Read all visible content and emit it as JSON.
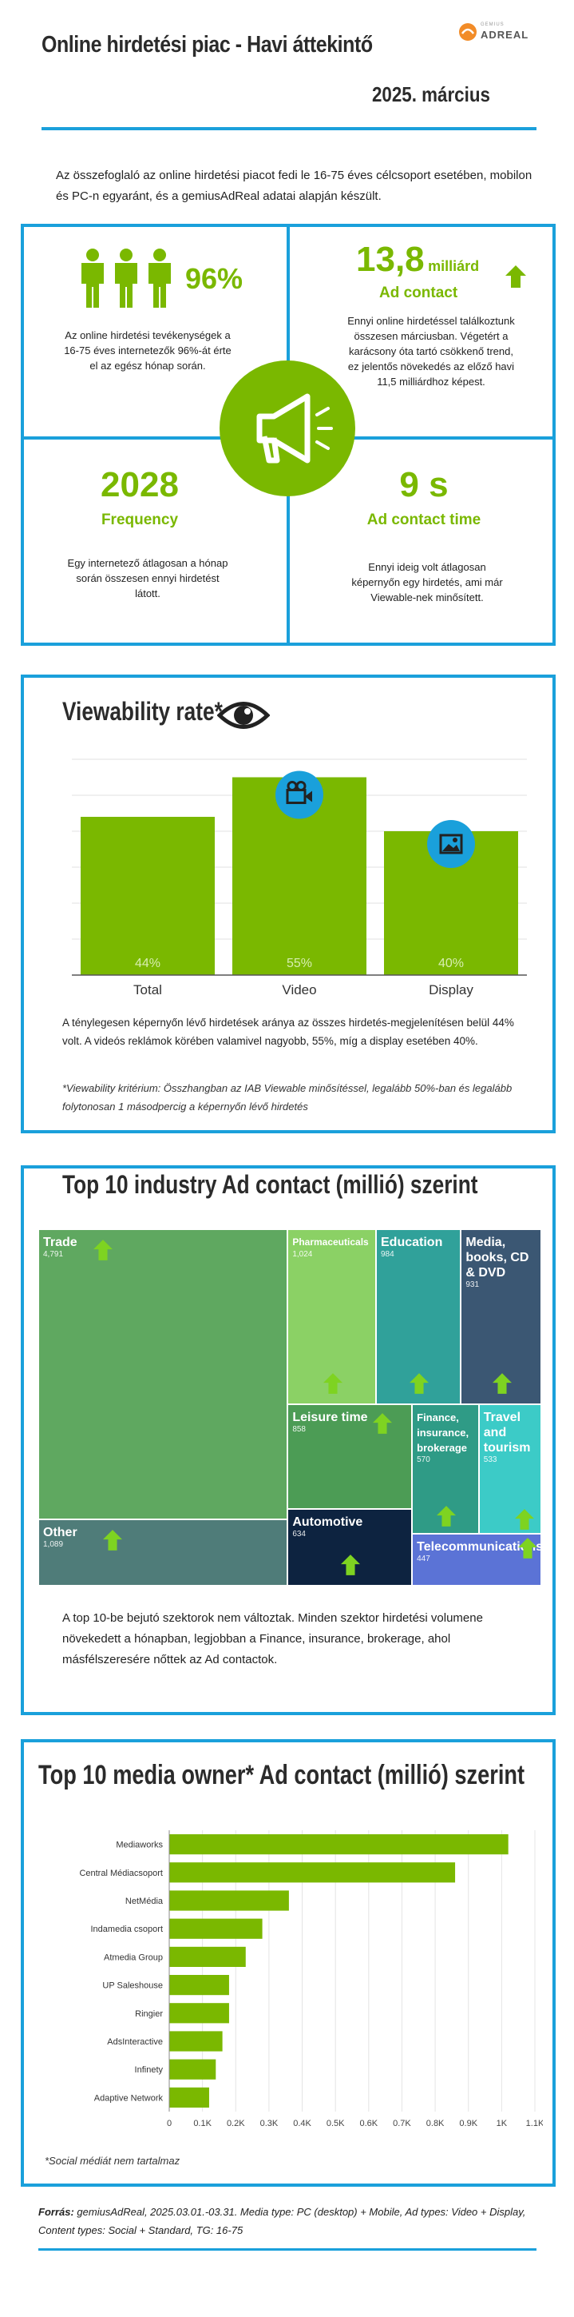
{
  "header": {
    "title": "Online hirdetési piac  - Havi áttekintő",
    "brand_small": "GEMIUS",
    "brand": "ADREAL",
    "date": "2025. március"
  },
  "intro": "Az összefoglaló az online hirdetési piacot fedi le 16-75 éves célcsoport esetében, mobilon és PC-n egyaránt, és a gemiusAdReal adatai alapján készült.",
  "kpis": {
    "reach": {
      "value": "96%",
      "desc": "Az online hirdetési tevékenységek a 16-75 éves internetezők 96%-át érte el az egész hónap során."
    },
    "ad_contact": {
      "value": "13,8",
      "unit": "milliárd",
      "label": "Ad contact",
      "desc": "Ennyi online hirdetéssel találkoztunk összesen márciusban. Végetért a karácsony óta tartó csökkenő trend, ez jelentős növekedés az előző havi 11,5 milliárdhoz képest."
    },
    "frequency": {
      "value": "2028",
      "label": "Frequency",
      "desc": "Egy internetező átlagosan a hónap során összesen ennyi hirdetést látott."
    },
    "contact_time": {
      "value": "9 s",
      "label": "Ad contact time",
      "desc": "Ennyi ideig volt átlagosan képernyőn egy hirdetés, ami már Viewable-nek minősített."
    }
  },
  "viewability": {
    "title": "Viewability rate*",
    "text": "A ténylegesen képernyőn lévő hirdetések aránya az összes hirdetés-megjelenítésen belül 44% volt. A videós reklámok körében valamivel nagyobb, 55%, míg a display esetében 40%.",
    "footnote": "*Viewability kritérium: Összhangban az IAB Viewable minősítéssel, legalább 50%-ban és legalább folytonosan 1 másodpercig a képernyőn lévő hirdetés"
  },
  "industry": {
    "title": "Top 10 industry Ad contact (millió) szerint",
    "text": "A top 10-be bejutó szektorok nem változtak. Minden szektor hirdetési volumene növekedett a hónapban, legjobban a Finance, insurance, brokerage, ahol másfélszeresére nőttek az Ad contactok."
  },
  "media": {
    "title": "Top 10 media owner* Ad contact (millió) szerint",
    "footnote": "*Social médiát nem tartalmaz"
  },
  "source": {
    "label": "Forrás:",
    "text": " gemiusAdReal, 2025.03.01.-03.31. Media type: PC (desktop) + Mobile, Ad types: Video + Display, Content types: Social + Standard, TG: 16-75"
  },
  "colors": {
    "green": "#7ab800",
    "blue": "#1aa0db",
    "navy": "#0d2340"
  },
  "chart_data": [
    {
      "type": "bar",
      "title": "Viewability rate*",
      "categories": [
        "Total",
        "Video",
        "Display"
      ],
      "values": [
        44,
        55,
        40
      ],
      "value_labels": [
        "44%",
        "55%",
        "40%"
      ],
      "ylim": [
        0,
        60
      ],
      "grid": true
    },
    {
      "type": "heatmap",
      "subtype": "treemap",
      "title": "Top 10 industry Ad contact (millió) szerint",
      "categories": [
        "Trade",
        "Other",
        "Pharmaceuticals",
        "Education",
        "Media, books, CD & DVD",
        "Leisure time",
        "Automotive",
        "Finance, insurance, brokerage",
        "Travel and tourism",
        "Telecommunications"
      ],
      "values": [
        4791,
        1089,
        1024,
        984,
        931,
        858,
        634,
        570,
        533,
        447
      ],
      "value_labels": [
        "4,791",
        "1,089",
        "1,024",
        "984",
        "931",
        "858",
        "634",
        "570",
        "533",
        "447"
      ],
      "colors": [
        "#5fa860",
        "#4f7c79",
        "#8bd165",
        "#30a19a",
        "#3b5773",
        "#4c9c55",
        "#0d2340",
        "#2f9b86",
        "#3ccbc7",
        "#5b73d6"
      ]
    },
    {
      "type": "bar",
      "orientation": "horizontal",
      "title": "Top 10 media owner* Ad contact (millió) szerint",
      "categories": [
        "Mediaworks",
        "Central Médiacsoport",
        "NetMédia",
        "Indamedia csoport",
        "Atmedia Group",
        "UP Saleshouse",
        "Ringier",
        "AdsInteractive",
        "Infinety",
        "Adaptive Network"
      ],
      "values": [
        1020,
        860,
        360,
        280,
        230,
        180,
        180,
        160,
        140,
        120
      ],
      "xticks": [
        "0",
        "0.1K",
        "0.2K",
        "0.3K",
        "0.4K",
        "0.5K",
        "0.6K",
        "0.7K",
        "0.8K",
        "0.9K",
        "1K",
        "1.1K"
      ],
      "xlim": [
        0,
        1100
      ],
      "grid": true
    }
  ]
}
